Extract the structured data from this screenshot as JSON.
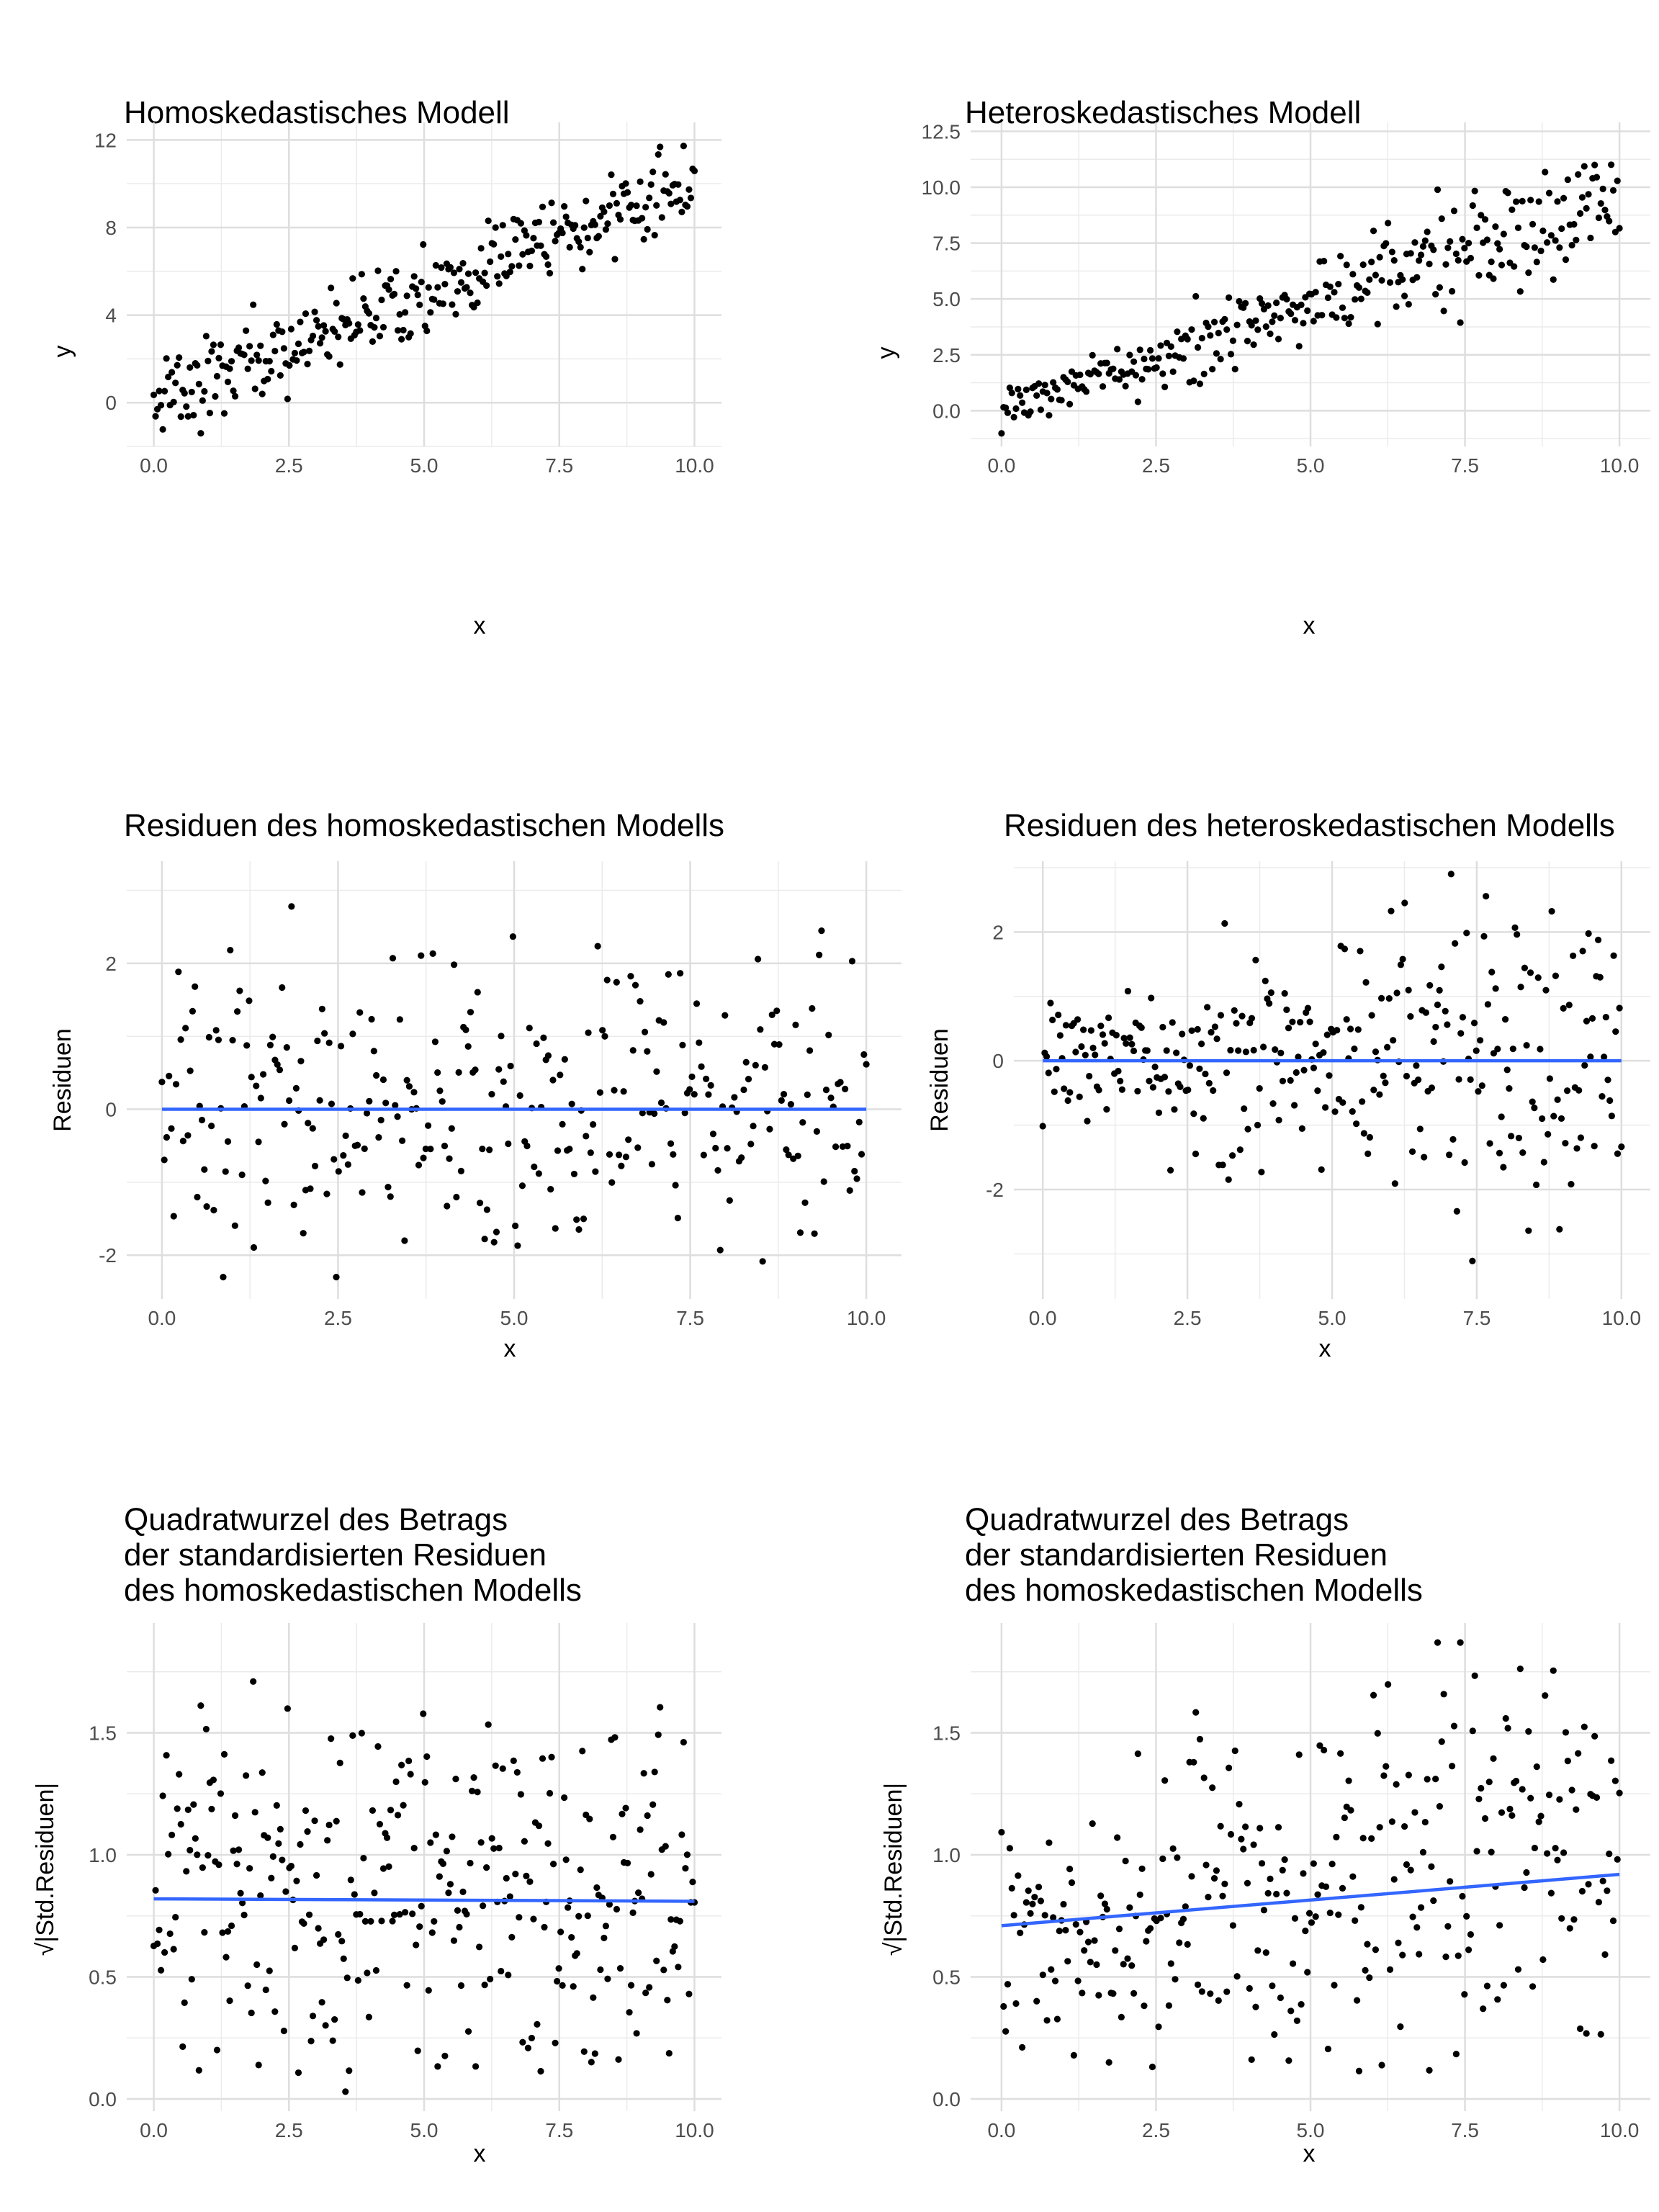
{
  "chart_data": [
    {
      "id": "p1",
      "type": "scatter",
      "title": "Homoskedastisches Modell",
      "xlabel": "x",
      "ylabel": "y",
      "xlim": [
        -0.5,
        10.5
      ],
      "ylim": [
        -2.0,
        12.8
      ],
      "xticks": [
        0,
        2.5,
        5,
        7.5,
        10
      ],
      "xtick_labels": [
        "0.0",
        "2.5",
        "5.0",
        "7.5",
        "10.0"
      ],
      "yticks": [
        0,
        4,
        8,
        12
      ],
      "ytick_labels": [
        "0",
        "4",
        "8",
        "12"
      ],
      "grid": true,
      "points": {
        "n": 300,
        "x_from": 0,
        "x_to": 10,
        "model": "y = 1.0*x, residual SD ~0.9"
      },
      "trend_line": null
    },
    {
      "id": "p2",
      "type": "scatter",
      "title": "Heteroskedastisches Modell",
      "xlabel": "x",
      "ylabel": "y",
      "xlim": [
        -0.5,
        10.5
      ],
      "ylim": [
        -1.6,
        12.9
      ],
      "xticks": [
        0,
        2.5,
        5,
        7.5,
        10
      ],
      "xtick_labels": [
        "0.0",
        "2.5",
        "5.0",
        "7.5",
        "10.0"
      ],
      "yticks": [
        0,
        2.5,
        5,
        7.5,
        10,
        12.5
      ],
      "ytick_labels": [
        "0.0",
        "2.5",
        "5.0",
        "7.5",
        "10.0",
        "12.5"
      ],
      "grid": true,
      "points": {
        "n": 300,
        "x_from": 0,
        "x_to": 10,
        "model": "y = 0.95*x, residual SD growing ~0.4 to ~1.3"
      },
      "trend_line": null
    },
    {
      "id": "p3",
      "type": "scatter",
      "title": "Residuen des homoskedastischen Modells",
      "xlabel": "x",
      "ylabel": "Residuen",
      "xlim": [
        -0.5,
        10.5
      ],
      "ylim": [
        -2.6,
        3.4
      ],
      "xticks": [
        0,
        2.5,
        5,
        7.5,
        10
      ],
      "xtick_labels": [
        "0.0",
        "2.5",
        "5.0",
        "7.5",
        "10.0"
      ],
      "yticks": [
        -2,
        0,
        2
      ],
      "ytick_labels": [
        "-2",
        "0",
        "2"
      ],
      "grid": true,
      "points": {
        "n": 300,
        "x_from": 0,
        "x_to": 10,
        "model": "residuals, SD ~0.95"
      },
      "trend_line": {
        "x": [
          0,
          10
        ],
        "y": [
          0.0,
          0.0
        ],
        "color": "#3366FF"
      }
    },
    {
      "id": "p4",
      "type": "scatter",
      "title": "Residuen des heteroskedastischen Modells",
      "xlabel": "x",
      "ylabel": "Residuen",
      "xlim": [
        -0.5,
        10.5
      ],
      "ylim": [
        -3.7,
        3.1
      ],
      "xticks": [
        0,
        2.5,
        5,
        7.5,
        10
      ],
      "xtick_labels": [
        "0.0",
        "2.5",
        "5.0",
        "7.5",
        "10.0"
      ],
      "yticks": [
        -2,
        0,
        2
      ],
      "ytick_labels": [
        "-2",
        "0",
        "2"
      ],
      "grid": true,
      "points": {
        "n": 300,
        "x_from": 0,
        "x_to": 10,
        "model": "residuals, SD growing ~0.5 to ~1.3"
      },
      "trend_line": {
        "x": [
          0,
          10
        ],
        "y": [
          0.0,
          0.0
        ],
        "color": "#3366FF"
      }
    },
    {
      "id": "p5",
      "type": "scatter",
      "title": "Quadratwurzel des Betrags\nder standardisierten Residuen\ndes homoskedastischen Modells",
      "xlabel": "x",
      "ylabel": "√|Std.Residuen|",
      "xlim": [
        -0.5,
        10.5
      ],
      "ylim": [
        -0.05,
        1.95
      ],
      "xticks": [
        0,
        2.5,
        5,
        7.5,
        10
      ],
      "xtick_labels": [
        "0.0",
        "2.5",
        "5.0",
        "7.5",
        "10.0"
      ],
      "yticks": [
        0,
        0.5,
        1,
        1.5
      ],
      "ytick_labels": [
        "0.0",
        "0.5",
        "1.0",
        "1.5"
      ],
      "grid": true,
      "points": {
        "n": 300,
        "x_from": 0,
        "x_to": 10,
        "model": "sqrt(|standardized residual|)"
      },
      "trend_line": {
        "x": [
          0,
          10
        ],
        "y": [
          0.82,
          0.81
        ],
        "color": "#3366FF"
      }
    },
    {
      "id": "p6",
      "type": "scatter",
      "title": "Quadratwurzel des Betrags\nder standardisierten Residuen\ndes homoskedastischen Modells",
      "xlabel": "x",
      "ylabel": "√|Std.Residuen|",
      "xlim": [
        -0.5,
        10.5
      ],
      "ylim": [
        -0.05,
        1.95
      ],
      "xticks": [
        0,
        2.5,
        5,
        7.5,
        10
      ],
      "xtick_labels": [
        "0.0",
        "2.5",
        "5.0",
        "7.5",
        "10.0"
      ],
      "yticks": [
        0,
        0.5,
        1,
        1.5
      ],
      "ytick_labels": [
        "0.0",
        "0.5",
        "1.0",
        "1.5"
      ],
      "grid": true,
      "points": {
        "n": 300,
        "x_from": 0,
        "x_to": 10,
        "model": "sqrt(|standardized residual|), increasing spread"
      },
      "trend_line": {
        "x": [
          0,
          10
        ],
        "y": [
          0.71,
          0.92
        ],
        "color": "#3366FF"
      }
    }
  ]
}
